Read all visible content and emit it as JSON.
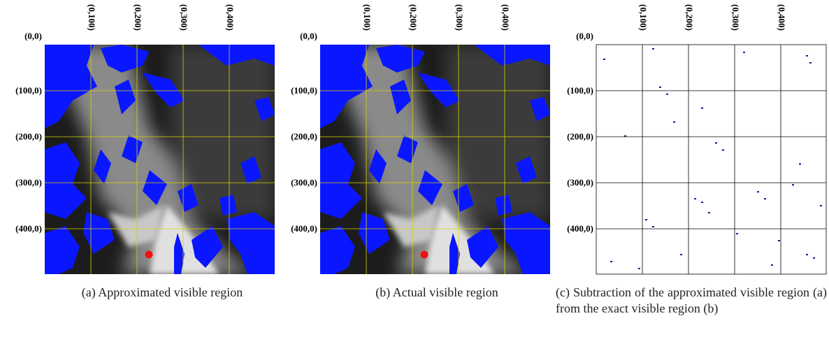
{
  "panels": [
    {
      "tag": "(a)",
      "caption": "Approximated visible region",
      "x_labels": [
        "(0,100)",
        "(0,200)",
        "(0,300)",
        "(0,400)"
      ],
      "y_labels": [
        "(0,0)",
        "(100,0)",
        "(200,0)",
        "(300,0)",
        "(400,0)"
      ]
    },
    {
      "tag": "(b)",
      "caption": "Actual visible region",
      "x_labels": [
        "(0,100)",
        "(0,200)",
        "(0,300)",
        "(0,400)"
      ],
      "y_labels": [
        "(0,0)",
        "(100,0)",
        "(200,0)",
        "(300,0)",
        "(400,0)"
      ]
    },
    {
      "tag": "(c)",
      "caption": "Subtraction of the approximated visible region (a) from the exact visible region (b)",
      "x_labels": [
        "(0,100)",
        "(0,200)",
        "(0,300)",
        "(0,400)"
      ],
      "y_labels": [
        "(0,0)",
        "(100,0)",
        "(200,0)",
        "(300,0)",
        "(400,0)"
      ]
    }
  ]
}
